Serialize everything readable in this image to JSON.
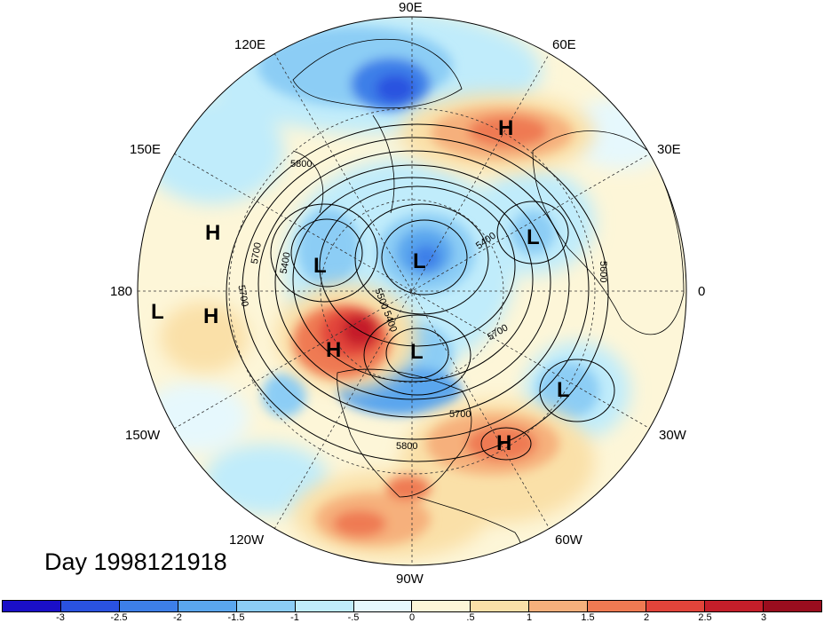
{
  "map": {
    "projection": "north polar stereographic",
    "longitude_labels": {
      "lon_90e": "90E",
      "lon_60e": "60E",
      "lon_30e": "30E",
      "lon_0": "0",
      "lon_30w": "30W",
      "lon_60w": "60W",
      "lon_90w": "90W",
      "lon_120w": "120W",
      "lon_150w": "150W",
      "lon_180": "180",
      "lon_150e": "150E",
      "lon_120e": "120E"
    },
    "pressure_centers": [
      {
        "name": "high",
        "label": "H"
      },
      {
        "name": "low",
        "label": "L"
      }
    ],
    "contour_labels": {
      "c1": "5800",
      "c2": "5700",
      "c3": "5400",
      "c4": "5700",
      "c5": "5400",
      "c6": "5700",
      "c7": "5800",
      "c8": "5700",
      "c9": "5500",
      "c10": "5400",
      "c11": "5600"
    },
    "day_label": "Day 1998121918"
  },
  "colorbar": {
    "tick_labels": [
      "-3",
      "-2.5",
      "-2",
      "-1.5",
      "-1",
      "-.5",
      "0",
      ".5",
      "1",
      "1.5",
      "2",
      "2.5",
      "3"
    ],
    "colors": [
      "#1a0fc8",
      "#2a52e0",
      "#3d7fe8",
      "#5aa6ee",
      "#8ccdf5",
      "#c0ecfb",
      "#e6f8fd",
      "#fdf6d8",
      "#fae0a8",
      "#f6b07c",
      "#ef7a52",
      "#e2443a",
      "#c51e2a",
      "#9a0d1e"
    ]
  }
}
